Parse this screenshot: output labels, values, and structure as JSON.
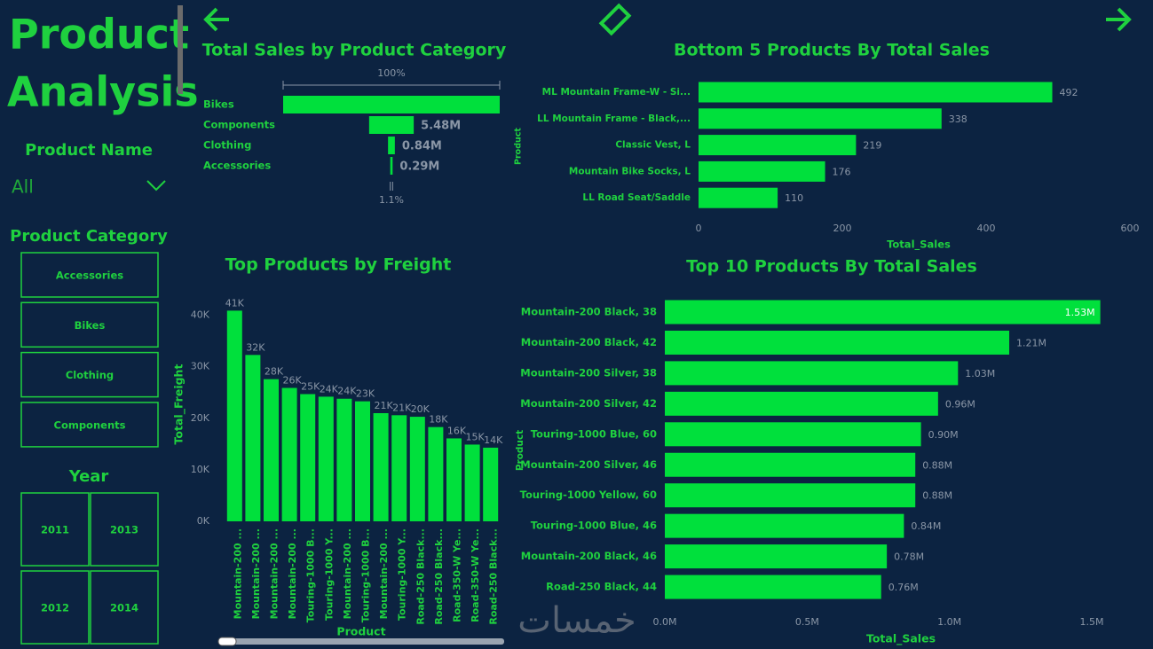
{
  "sidebar": {
    "title": [
      "Product",
      "Analysis"
    ],
    "product_name": {
      "label": "Product Name",
      "value": "All"
    },
    "product_category": {
      "label": "Product Category",
      "items": [
        "Accessories",
        "Bikes",
        "Clothing",
        "Components"
      ]
    },
    "year": {
      "label": "Year",
      "items": [
        "2011",
        "2013",
        "2012",
        "2014"
      ]
    }
  },
  "watermark": "خمسات",
  "chart_data": [
    {
      "type": "funnel",
      "title": "Total Sales by Product Category",
      "categories": [
        "Bikes",
        "Components",
        "Clothing",
        "Accessories"
      ],
      "values": [
        26.6,
        5.48,
        0.84,
        0.29
      ],
      "value_labels": [
        null,
        "5.48M",
        "0.84M",
        "0.29M"
      ],
      "top_label": "100%",
      "bottom_label": "1.1%",
      "color": "#00e03c"
    },
    {
      "type": "hbar",
      "title": "Bottom 5 Products By Total Sales",
      "categories": [
        "ML Mountain Frame-W - Si...",
        "LL Mountain Frame - Black,...",
        "Classic Vest, L",
        "Mountain Bike Socks, L",
        "LL Road Seat/Saddle"
      ],
      "values": [
        492,
        338,
        219,
        176,
        110
      ],
      "xlim": [
        0,
        600
      ],
      "xticks": [
        0,
        200,
        400,
        600
      ],
      "x_label": "Total_Sales",
      "y_label": "Product",
      "color": "#00e03c"
    },
    {
      "type": "bar",
      "title": "Top Products by Freight",
      "categories": [
        "Mountain-200 ...",
        "Mountain-200 ...",
        "Mountain-200 ...",
        "Mountain-200 ...",
        "Touring-1000 B...",
        "Touring-1000 Y...",
        "Mountain-200 ...",
        "Touring-1000 B...",
        "Mountain-200 ...",
        "Touring-1000 Y...",
        "Road-250 Black...",
        "Road-250 Black...",
        "Road-350-W Ye...",
        "Road-350-W Ye...",
        "Road-250 Black..."
      ],
      "values": [
        40900,
        32300,
        27600,
        25900,
        24700,
        24200,
        23800,
        23300,
        21000,
        20600,
        20300,
        18300,
        16100,
        14900,
        14300
      ],
      "value_labels": [
        "41K",
        "32K",
        "28K",
        "26K",
        "25K",
        "24K",
        "24K",
        "23K",
        "21K",
        "21K",
        "20K",
        "18K",
        "16K",
        "15K",
        "14K"
      ],
      "ylim": [
        0,
        42000
      ],
      "yticks": [
        {
          "value": 0,
          "label": "0K"
        },
        {
          "value": 10000,
          "label": "10K"
        },
        {
          "value": 20000,
          "label": "20K"
        },
        {
          "value": 30000,
          "label": "30K"
        },
        {
          "value": 40000,
          "label": "40K"
        }
      ],
      "x_label": "Product",
      "y_label": "Total_Freight",
      "color": "#00e03c"
    },
    {
      "type": "hbar",
      "title": "Top 10 Products By Total Sales",
      "categories": [
        "Mountain-200 Black, 38",
        "Mountain-200 Black, 42",
        "Mountain-200 Silver, 38",
        "Mountain-200 Silver, 42",
        "Touring-1000 Blue, 60",
        "Mountain-200 Silver, 46",
        "Touring-1000 Yellow, 60",
        "Touring-1000 Blue, 46",
        "Mountain-200 Black, 46",
        "Road-250 Black, 44"
      ],
      "values": [
        1530000,
        1210000,
        1030000,
        960000,
        900000,
        880000,
        880000,
        840000,
        780000,
        760000
      ],
      "value_labels": [
        "1.53M",
        "1.21M",
        "1.03M",
        "0.96M",
        "0.90M",
        "0.88M",
        "0.88M",
        "0.84M",
        "0.78M",
        "0.76M"
      ],
      "xlim": [
        0,
        1620000
      ],
      "xticks": [
        {
          "value": 0,
          "label": "0.0M"
        },
        {
          "value": 500000,
          "label": "0.5M"
        },
        {
          "value": 1000000,
          "label": "1.0M"
        },
        {
          "value": 1500000,
          "label": "1.5M"
        }
      ],
      "x_label": "Total_Sales",
      "y_label": "Product",
      "color": "#00e03c"
    }
  ]
}
